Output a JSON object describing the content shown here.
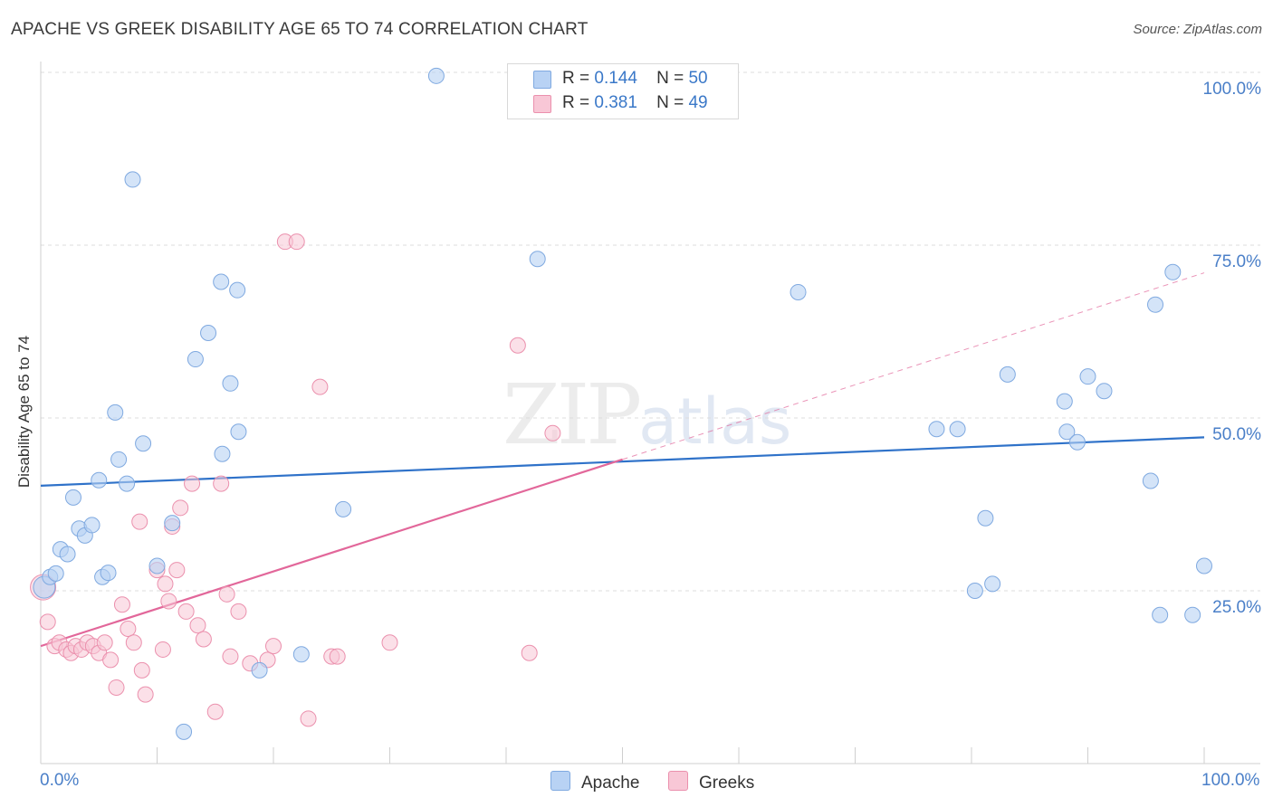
{
  "title": "APACHE VS GREEK DISABILITY AGE 65 TO 74 CORRELATION CHART",
  "source": "Source: ZipAtlas.com",
  "watermark": {
    "zip": "ZIP",
    "atlas": "atlas"
  },
  "colors": {
    "apache_fill": "#b8d2f4",
    "apache_stroke": "#7fa9e0",
    "apache_line": "#2f72c9",
    "greek_fill": "#f8c7d6",
    "greek_stroke": "#eb90ad",
    "greek_line": "#e2679a",
    "grid": "#dddddd",
    "tick_text": "#4a7fc8"
  },
  "legend": {
    "rows": [
      {
        "series": "Apache",
        "r_label": "R =",
        "r_value": "0.144",
        "n_label": "N =",
        "n_value": "50"
      },
      {
        "series": "Greeks",
        "r_label": "R =",
        "r_value": "0.381",
        "n_label": "N =",
        "n_value": "49"
      }
    ],
    "bottom": [
      "Apache",
      "Greeks"
    ]
  },
  "chart_data": {
    "type": "scatter",
    "title": "APACHE VS GREEK DISABILITY AGE 65 TO 74 CORRELATION CHART",
    "xlabel": "",
    "ylabel": "Disability Age 65 to 74",
    "xlim": [
      0,
      100
    ],
    "ylim": [
      0,
      100
    ],
    "x_tick_labels": [
      "0.0%",
      "100.0%"
    ],
    "y_tick_labels": [
      "25.0%",
      "50.0%",
      "75.0%",
      "100.0%"
    ],
    "y_ticks": [
      25,
      50,
      75,
      100
    ],
    "x_minor_ticks": [
      0,
      10,
      20,
      30,
      40,
      50,
      60,
      70,
      80,
      90,
      100
    ],
    "grid": true,
    "series": [
      {
        "name": "Apache",
        "r": 0.144,
        "n": 50,
        "trend": {
          "x": [
            0,
            100
          ],
          "y": [
            40.2,
            47.2
          ],
          "style": "solid"
        },
        "points": [
          [
            0.3,
            25.5
          ],
          [
            0.8,
            27.0
          ],
          [
            1.3,
            27.5
          ],
          [
            1.7,
            31.0
          ],
          [
            2.3,
            30.3
          ],
          [
            2.8,
            38.5
          ],
          [
            3.3,
            34.0
          ],
          [
            3.8,
            33.0
          ],
          [
            4.4,
            34.5
          ],
          [
            5.0,
            41.0
          ],
          [
            5.3,
            27.0
          ],
          [
            5.8,
            27.6
          ],
          [
            6.4,
            50.8
          ],
          [
            6.7,
            44.0
          ],
          [
            7.4,
            40.5
          ],
          [
            7.9,
            84.5
          ],
          [
            8.8,
            46.3
          ],
          [
            10.0,
            28.6
          ],
          [
            11.3,
            34.8
          ],
          [
            12.3,
            4.6
          ],
          [
            13.3,
            58.5
          ],
          [
            14.4,
            62.3
          ],
          [
            15.5,
            69.7
          ],
          [
            15.6,
            44.8
          ],
          [
            16.3,
            55.0
          ],
          [
            16.9,
            68.5
          ],
          [
            17.0,
            48.0
          ],
          [
            18.8,
            13.5
          ],
          [
            22.4,
            15.8
          ],
          [
            26.0,
            36.8
          ],
          [
            34.0,
            99.5
          ],
          [
            42.7,
            73.0
          ],
          [
            65.1,
            68.2
          ],
          [
            77.0,
            48.4
          ],
          [
            78.8,
            48.4
          ],
          [
            80.3,
            25.0
          ],
          [
            81.2,
            35.5
          ],
          [
            81.8,
            26.0
          ],
          [
            83.1,
            56.3
          ],
          [
            88.0,
            52.4
          ],
          [
            88.2,
            48.0
          ],
          [
            89.1,
            46.5
          ],
          [
            90.0,
            56.0
          ],
          [
            91.4,
            53.9
          ],
          [
            95.4,
            40.9
          ],
          [
            95.8,
            66.4
          ],
          [
            96.2,
            21.5
          ],
          [
            97.3,
            71.1
          ],
          [
            99.0,
            21.5
          ],
          [
            100.0,
            28.6
          ]
        ]
      },
      {
        "name": "Greeks",
        "r": 0.381,
        "n": 49,
        "trend": {
          "x": [
            0,
            50
          ],
          "y": [
            17.0,
            44.0
          ],
          "style": "solid"
        },
        "trend_extension": {
          "x": [
            50,
            100
          ],
          "y": [
            44.0,
            71.0
          ],
          "style": "dashed"
        },
        "points": [
          [
            0.2,
            25.5
          ],
          [
            0.6,
            20.5
          ],
          [
            1.2,
            17.0
          ],
          [
            1.6,
            17.5
          ],
          [
            2.2,
            16.5
          ],
          [
            2.6,
            16.0
          ],
          [
            3.0,
            17.0
          ],
          [
            3.5,
            16.5
          ],
          [
            4.0,
            17.5
          ],
          [
            4.5,
            17.0
          ],
          [
            5.0,
            16.0
          ],
          [
            5.5,
            17.5
          ],
          [
            6.0,
            15.0
          ],
          [
            6.5,
            11.0
          ],
          [
            7.0,
            23.0
          ],
          [
            7.5,
            19.5
          ],
          [
            8.0,
            17.5
          ],
          [
            8.5,
            35.0
          ],
          [
            8.7,
            13.5
          ],
          [
            9.0,
            10.0
          ],
          [
            10.0,
            28.0
          ],
          [
            10.5,
            16.5
          ],
          [
            10.7,
            26.0
          ],
          [
            11.0,
            23.5
          ],
          [
            11.3,
            34.3
          ],
          [
            11.7,
            28.0
          ],
          [
            12.0,
            37.0
          ],
          [
            12.5,
            22.0
          ],
          [
            13.0,
            40.5
          ],
          [
            13.5,
            20.0
          ],
          [
            14.0,
            18.0
          ],
          [
            15.0,
            7.5
          ],
          [
            15.5,
            40.5
          ],
          [
            16.0,
            24.5
          ],
          [
            16.3,
            15.5
          ],
          [
            17.0,
            22.0
          ],
          [
            18.0,
            14.5
          ],
          [
            19.5,
            15.0
          ],
          [
            20.0,
            17.0
          ],
          [
            21.0,
            75.5
          ],
          [
            22.0,
            75.5
          ],
          [
            23.0,
            6.5
          ],
          [
            24.0,
            54.5
          ],
          [
            25.0,
            15.5
          ],
          [
            25.5,
            15.5
          ],
          [
            30.0,
            17.5
          ],
          [
            41.0,
            60.5
          ],
          [
            42.0,
            16.0
          ],
          [
            44.0,
            47.8
          ]
        ]
      }
    ]
  }
}
